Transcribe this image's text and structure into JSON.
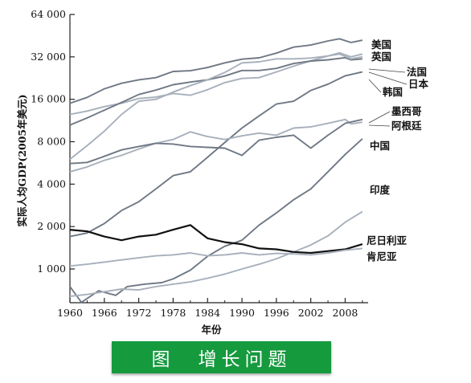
{
  "caption": "图　增长问题",
  "chart_data": {
    "type": "line",
    "title": "",
    "xlabel": "年份",
    "ylabel": "实际人均GDP(2005年美元)",
    "yscale": "log2",
    "xlim": [
      1960,
      2012
    ],
    "ylim": [
      600,
      64000
    ],
    "x_ticks": [
      1960,
      1966,
      1972,
      1978,
      1984,
      1990,
      1996,
      2002,
      2008
    ],
    "x_tick_labels": [
      "1960",
      "1966",
      "1972",
      "1978",
      "1984",
      "1990",
      "1996",
      "2002",
      "2008"
    ],
    "y_ticks": [
      1000,
      2000,
      4000,
      8000,
      16000,
      32000,
      64000
    ],
    "y_tick_labels": [
      "1 000",
      "2 000",
      "4 000",
      "8 000",
      "16 000",
      "32 000",
      "64 000"
    ],
    "colors": {
      "dark": "#111111",
      "mid": "#6f7884",
      "light": "#a7b0bb",
      "axis": "#222222",
      "caption_bg": "#159a3e",
      "caption_text": "#ffffff"
    },
    "series": [
      {
        "name": "美国",
        "color": "mid",
        "x": [
          1960,
          1963,
          1966,
          1969,
          1972,
          1975,
          1978,
          1981,
          1984,
          1987,
          1990,
          1993,
          1996,
          1999,
          2002,
          2005,
          2007,
          2009,
          2011
        ],
        "values": [
          15000,
          16500,
          19000,
          20800,
          22000,
          22800,
          25200,
          25500,
          26900,
          29000,
          30800,
          31500,
          34000,
          37500,
          38800,
          41500,
          43000,
          40500,
          42000
        ]
      },
      {
        "name": "英国",
        "color": "light",
        "x": [
          1960,
          1963,
          1966,
          1969,
          1972,
          1975,
          1978,
          1981,
          1984,
          1987,
          1990,
          1993,
          1996,
          1999,
          2002,
          2005,
          2007,
          2009,
          2011
        ],
        "values": [
          12500,
          13200,
          14200,
          15000,
          16200,
          16600,
          17600,
          17100,
          18700,
          21000,
          22500,
          22800,
          25000,
          27500,
          30000,
          32500,
          34200,
          32000,
          33500
        ]
      },
      {
        "name": "法国",
        "color": "mid",
        "x": [
          1960,
          1963,
          1966,
          1969,
          1972,
          1975,
          1978,
          1981,
          1984,
          1987,
          1990,
          1993,
          1996,
          1999,
          2002,
          2005,
          2008,
          2009,
          2011
        ],
        "values": [
          10500,
          11800,
          13400,
          15200,
          17300,
          18600,
          20300,
          21200,
          22000,
          23400,
          25600,
          25600,
          26500,
          28700,
          29900,
          30500,
          31600,
          30500,
          31000
        ]
      },
      {
        "name": "日本",
        "color": "light",
        "x": [
          1960,
          1963,
          1966,
          1969,
          1972,
          1975,
          1978,
          1981,
          1984,
          1987,
          1990,
          1993,
          1996,
          1999,
          2002,
          2005,
          2007,
          2009,
          2011
        ],
        "values": [
          6000,
          7500,
          9500,
          12500,
          15500,
          16000,
          18000,
          20000,
          22000,
          24800,
          29000,
          29500,
          31000,
          31000,
          31400,
          32500,
          33500,
          31000,
          32000
        ]
      },
      {
        "name": "韩国",
        "color": "mid",
        "x": [
          1960,
          1963,
          1966,
          1969,
          1972,
          1975,
          1978,
          1981,
          1984,
          1987,
          1990,
          1993,
          1996,
          1999,
          2002,
          2005,
          2008,
          2011
        ],
        "values": [
          1700,
          1800,
          2100,
          2600,
          3000,
          3700,
          4600,
          4900,
          6200,
          7900,
          10000,
          12200,
          14800,
          15500,
          18500,
          20500,
          23500,
          25000
        ]
      },
      {
        "name": "墨西哥",
        "color": "light",
        "x": [
          1960,
          1963,
          1966,
          1969,
          1972,
          1975,
          1978,
          1981,
          1984,
          1987,
          1990,
          1993,
          1996,
          1999,
          2002,
          2005,
          2008,
          2009,
          2011
        ],
        "values": [
          4900,
          5300,
          5900,
          6400,
          7100,
          7800,
          8300,
          9400,
          8700,
          8300,
          8800,
          9200,
          8900,
          10000,
          10200,
          10800,
          11500,
          10700,
          11000
        ]
      },
      {
        "name": "阿根廷",
        "color": "mid",
        "x": [
          1960,
          1963,
          1966,
          1969,
          1972,
          1975,
          1978,
          1981,
          1984,
          1987,
          1990,
          1993,
          1996,
          1999,
          2002,
          2005,
          2008,
          2011
        ],
        "values": [
          5600,
          5700,
          6300,
          7000,
          7400,
          7800,
          7700,
          7400,
          7300,
          7200,
          6400,
          8200,
          8600,
          8900,
          7200,
          8900,
          10800,
          11500
        ]
      },
      {
        "name": "中国",
        "color": "mid",
        "x": [
          1960,
          1962,
          1965,
          1968,
          1970,
          1973,
          1976,
          1978,
          1981,
          1984,
          1987,
          1990,
          1993,
          1996,
          1999,
          2002,
          2005,
          2008,
          2011
        ],
        "values": [
          750,
          580,
          700,
          650,
          750,
          780,
          800,
          850,
          980,
          1230,
          1450,
          1600,
          2050,
          2500,
          3100,
          3700,
          4900,
          6500,
          8400
        ]
      },
      {
        "name": "印度",
        "color": "light",
        "x": [
          1960,
          1963,
          1966,
          1969,
          1972,
          1975,
          1978,
          1981,
          1984,
          1987,
          1990,
          1993,
          1996,
          1999,
          2002,
          2005,
          2008,
          2011
        ],
        "values": [
          640,
          660,
          690,
          720,
          710,
          750,
          780,
          810,
          860,
          920,
          1000,
          1080,
          1180,
          1320,
          1480,
          1720,
          2150,
          2550
        ]
      },
      {
        "name": "尼日利亚",
        "color": "dark",
        "x": [
          1960,
          1963,
          1966,
          1969,
          1972,
          1975,
          1978,
          1981,
          1984,
          1987,
          1990,
          1993,
          1996,
          1999,
          2002,
          2005,
          2008,
          2011
        ],
        "values": [
          1900,
          1850,
          1700,
          1600,
          1700,
          1750,
          1900,
          2050,
          1650,
          1550,
          1500,
          1400,
          1380,
          1320,
          1300,
          1340,
          1380,
          1500
        ]
      },
      {
        "name": "肯尼亚",
        "color": "light",
        "x": [
          1960,
          1963,
          1966,
          1969,
          1972,
          1975,
          1978,
          1981,
          1984,
          1987,
          1990,
          1993,
          1996,
          1999,
          2002,
          2005,
          2008,
          2011
        ],
        "values": [
          1050,
          1080,
          1120,
          1160,
          1200,
          1240,
          1260,
          1300,
          1240,
          1260,
          1300,
          1260,
          1290,
          1280,
          1260,
          1300,
          1360,
          1400
        ]
      }
    ]
  }
}
